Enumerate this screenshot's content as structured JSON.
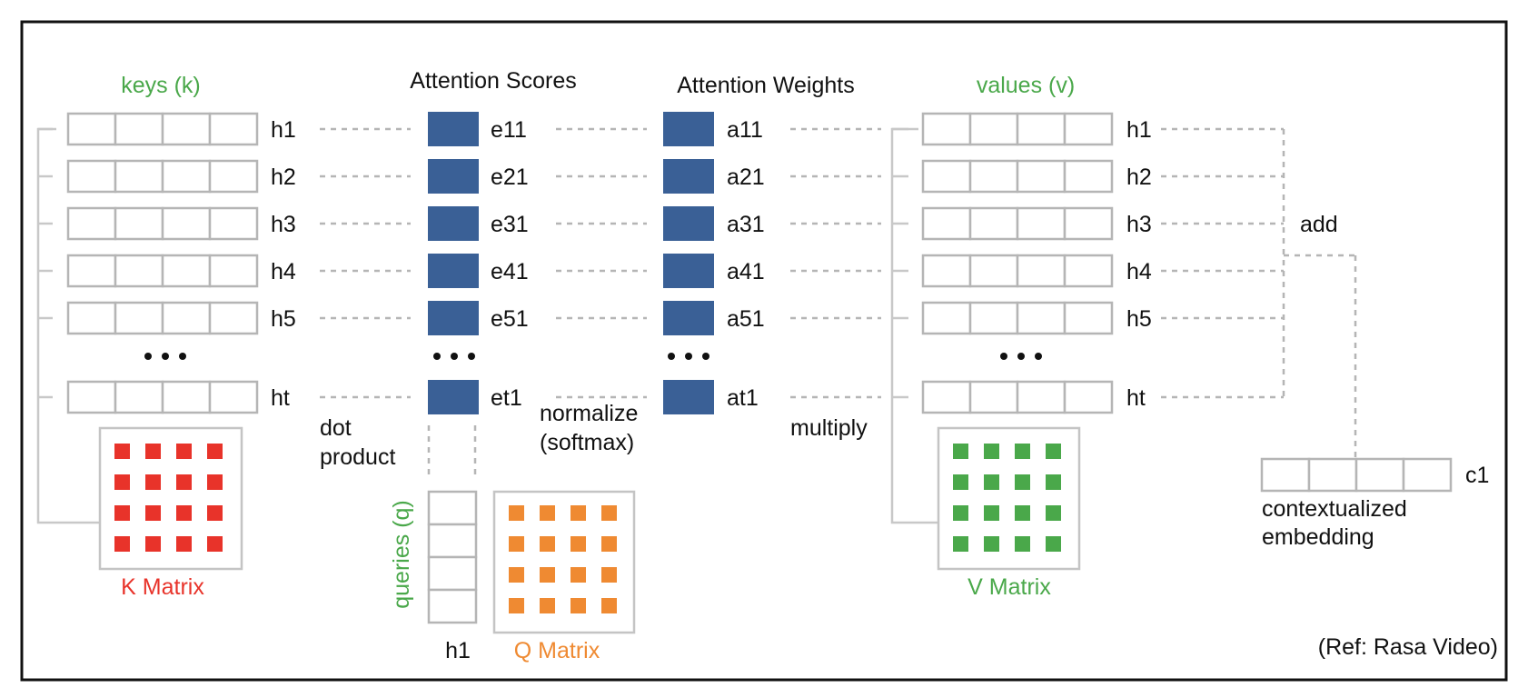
{
  "colors": {
    "score_block": "#3a6096",
    "green": "#4aa84a",
    "red": "#e8332a",
    "orange": "#ef8a32",
    "grid": "#b5b5b5"
  },
  "keys": {
    "title": "keys (k)",
    "row_labels": [
      "h1",
      "h2",
      "h3",
      "h4",
      "h5",
      "ht"
    ],
    "matrix_label": "K Matrix"
  },
  "scores": {
    "title": "Attention Scores",
    "labels": [
      "e11",
      "e21",
      "e31",
      "e41",
      "e51",
      "et1"
    ]
  },
  "weights": {
    "title": "Attention Weights",
    "labels": [
      "a11",
      "a21",
      "a31",
      "a41",
      "a51",
      "at1"
    ]
  },
  "values": {
    "title": "values (v)",
    "row_labels": [
      "h1",
      "h2",
      "h3",
      "h4",
      "h5",
      "ht"
    ],
    "matrix_label": "V Matrix"
  },
  "queries": {
    "title": "queries (q)",
    "column_label": "h1",
    "matrix_label": "Q Matrix"
  },
  "operations": {
    "dot_product": [
      "dot",
      "product"
    ],
    "normalize": [
      "normalize",
      "(softmax)"
    ],
    "multiply": "multiply",
    "add": "add"
  },
  "output": {
    "label": "c1",
    "caption": [
      "contextualized",
      "embedding"
    ]
  },
  "reference": "(Ref: Rasa Video)"
}
